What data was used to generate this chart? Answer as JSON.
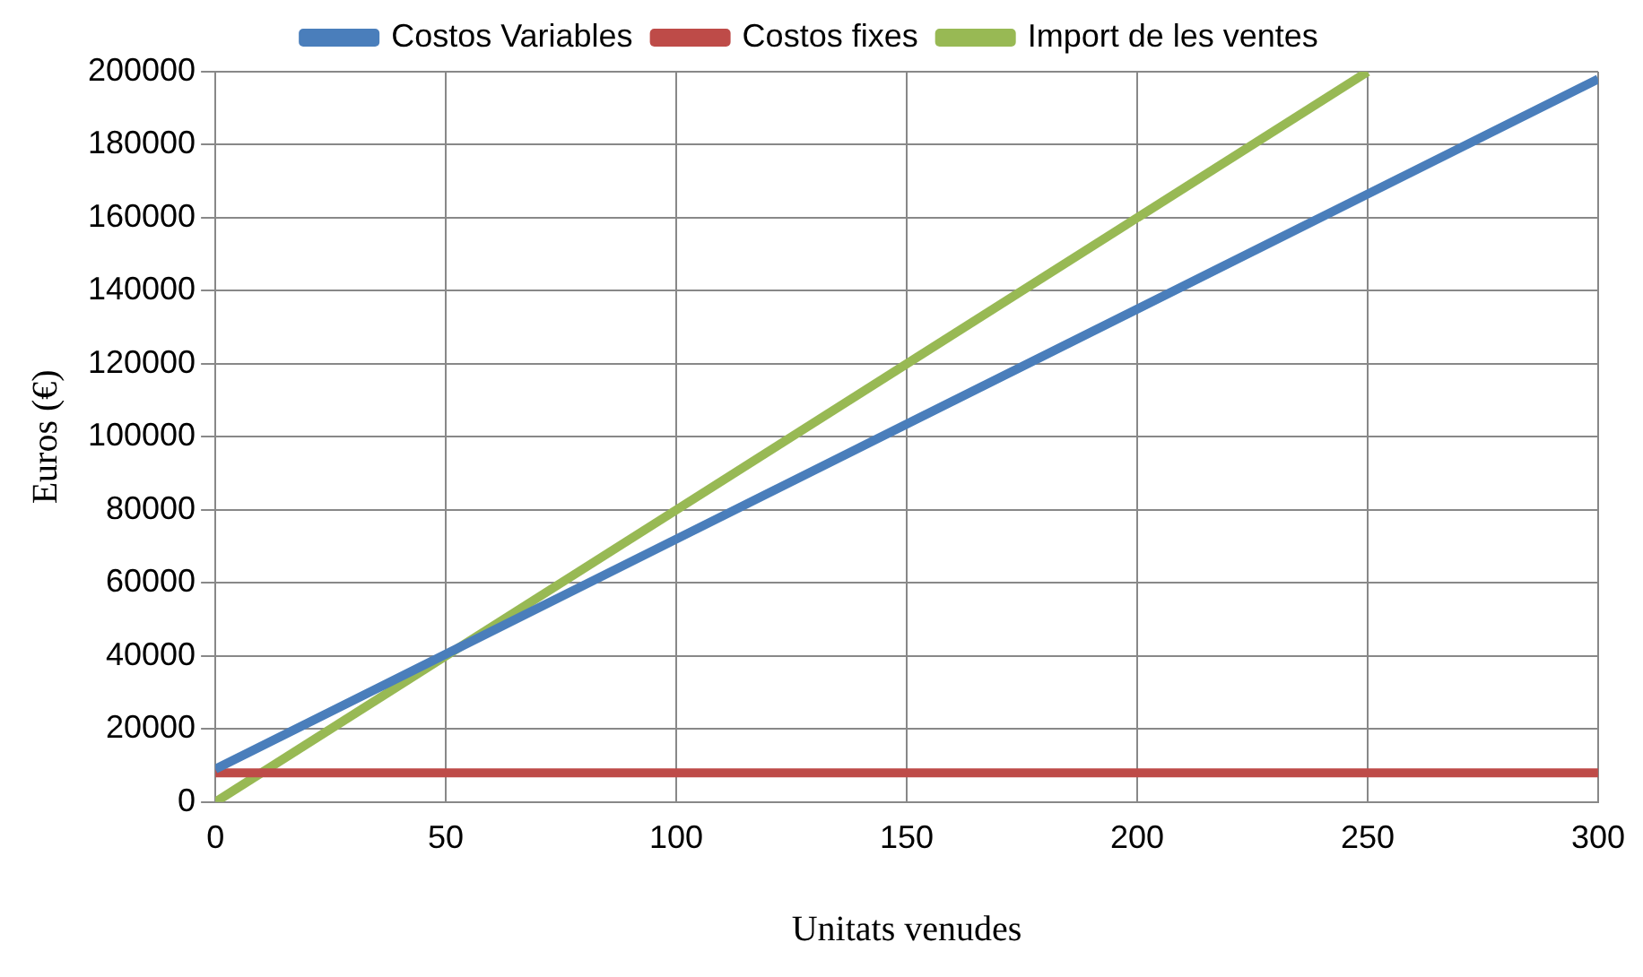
{
  "chart_data": {
    "type": "line",
    "xlabel": "Unitats venudes",
    "ylabel": "Euros (€)",
    "xlim": [
      0,
      300
    ],
    "xticks": [
      0,
      50,
      100,
      150,
      200,
      250,
      300
    ],
    "ylim": [
      0,
      200000
    ],
    "yticks": [
      0,
      20000,
      40000,
      60000,
      80000,
      100000,
      120000,
      140000,
      160000,
      180000,
      200000
    ],
    "grid": true,
    "legend": "top",
    "marker": "none",
    "line_style": "solid",
    "series": [
      {
        "name": "Costos Variables",
        "color": "#4a7ebb",
        "x": [
          0,
          300
        ],
        "values": [
          9000,
          198000
        ]
      },
      {
        "name": "Costos fixes",
        "color": "#be4b48",
        "x": [
          0,
          300
        ],
        "values": [
          8000,
          8000
        ]
      },
      {
        "name": "Import de les ventes",
        "color": "#98b954",
        "x": [
          0,
          250
        ],
        "values": [
          0,
          200000
        ]
      }
    ]
  }
}
